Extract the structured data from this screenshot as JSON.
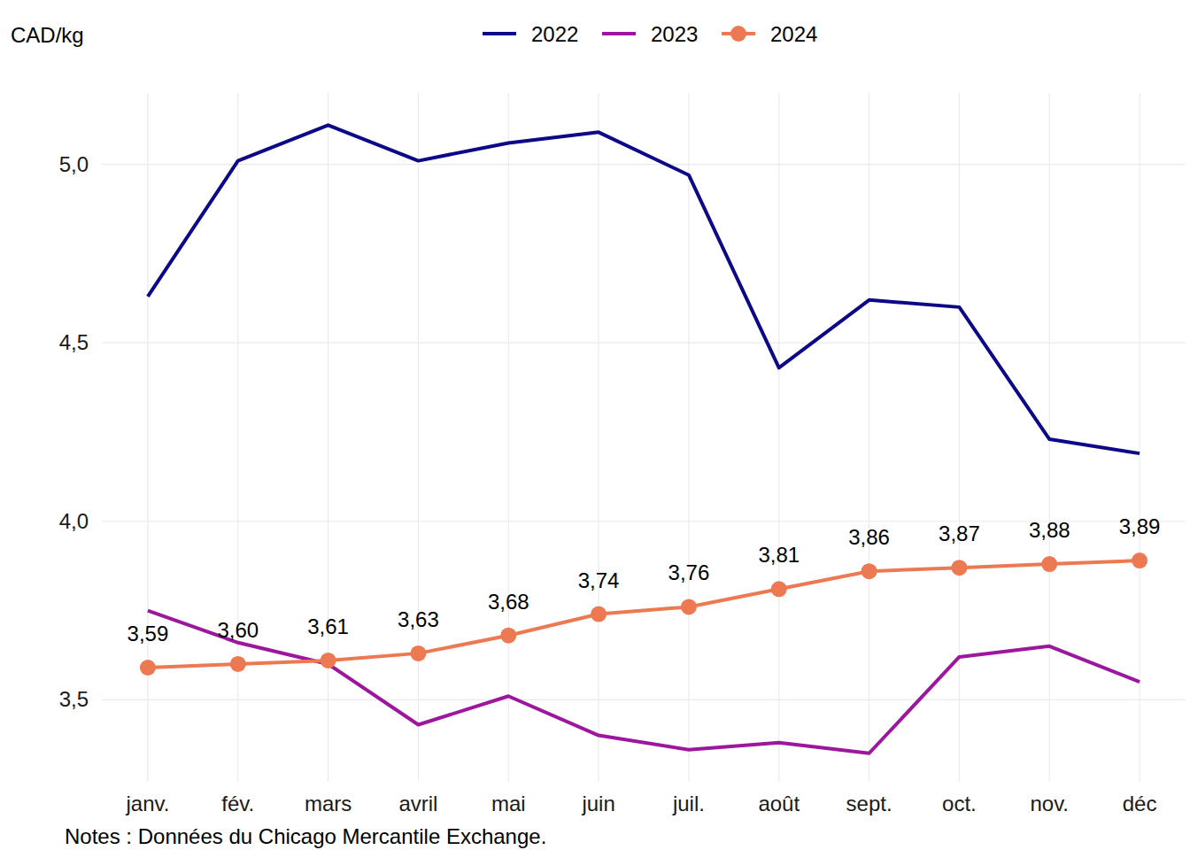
{
  "chart_data": {
    "type": "line",
    "y_label": "CAD/kg",
    "caption": "Notes : Données du Chicago Mercantile Exchange.",
    "categories": [
      "janv.",
      "fév.",
      "mars",
      "avril",
      "mai",
      "juin",
      "juil.",
      "août",
      "sept.",
      "oct.",
      "nov.",
      "déc"
    ],
    "series": [
      {
        "name": "2022",
        "color": "#0d0887",
        "values": [
          4.63,
          5.01,
          5.11,
          5.01,
          5.06,
          5.09,
          4.97,
          4.43,
          4.62,
          4.6,
          4.23,
          4.19
        ]
      },
      {
        "name": "2023",
        "color": "#9c179e",
        "values": [
          3.75,
          3.66,
          3.6,
          3.43,
          3.51,
          3.4,
          3.36,
          3.38,
          3.35,
          3.62,
          3.65,
          3.55
        ]
      },
      {
        "name": "2024",
        "color": "#ed7953",
        "marker": "circle",
        "data_labels": true,
        "values": [
          3.59,
          3.6,
          3.61,
          3.63,
          3.68,
          3.74,
          3.76,
          3.81,
          3.86,
          3.87,
          3.88,
          3.89
        ],
        "value_labels": [
          "3,59",
          "3,60",
          "3,61",
          "3,63",
          "3,68",
          "3,74",
          "3,76",
          "3,81",
          "3,86",
          "3,87",
          "3,88",
          "3,89"
        ]
      }
    ],
    "ylim": [
      3.27,
      5.2
    ],
    "yticks": [
      {
        "value": 3.5,
        "label": "3,5"
      },
      {
        "value": 4.0,
        "label": "4,0"
      },
      {
        "value": 4.5,
        "label": "4,5"
      },
      {
        "value": 5.0,
        "label": "5,0"
      }
    ],
    "grid": true,
    "legend": "top"
  }
}
